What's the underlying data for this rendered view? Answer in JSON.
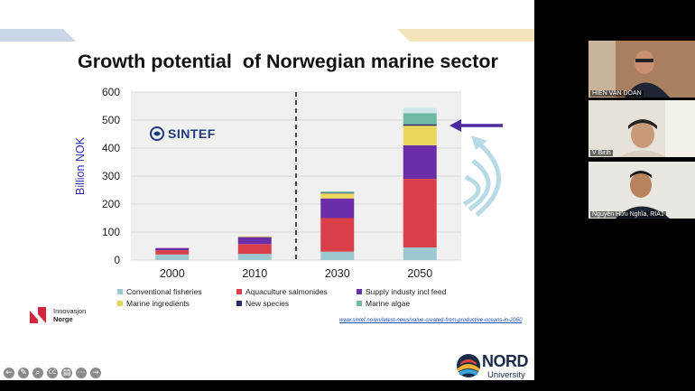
{
  "slide": {
    "title": "Growth potential  of Norwegian marine sector",
    "logo_text": "SINTEF",
    "source_link": "www.sintef.no/en/latest-news/value-created-from-productive-oceans-in-2050",
    "innovasjon": [
      "Innovasjon",
      "Norge"
    ],
    "nord_logo": "NORD",
    "nord_sub": "University"
  },
  "chart_data": {
    "type": "bar",
    "stacked": true,
    "title": "",
    "ylabel": "Billion NOK",
    "xlabel": "",
    "ylim": [
      0,
      600
    ],
    "yticks": [
      0,
      100,
      200,
      300,
      400,
      500,
      600
    ],
    "categories": [
      "2000",
      "2010",
      "2030",
      "2050"
    ],
    "series": [
      {
        "name": "Conventional fisheries",
        "color": "#9cc8d2",
        "values": [
          20,
          22,
          30,
          45
        ]
      },
      {
        "name": "Aquaculture salmonides",
        "color": "#d9404a",
        "values": [
          15,
          35,
          120,
          245
        ]
      },
      {
        "name": "Supply industy incl feed",
        "color": "#6b2ea8",
        "values": [
          8,
          25,
          70,
          120
        ]
      },
      {
        "name": "Marine ingredients",
        "color": "#e9d65a",
        "values": [
          0,
          3,
          18,
          70
        ]
      },
      {
        "name": "New species",
        "color": "#2a2a6a",
        "values": [
          0,
          0,
          2,
          5
        ]
      },
      {
        "name": "Marine algae",
        "color": "#6fb8a6",
        "values": [
          0,
          0,
          5,
          40
        ]
      }
    ],
    "top_segment": {
      "category": "2050",
      "color": "#cfe7ea",
      "value": 18
    },
    "divider_after": "2010",
    "legend_position": "bottom"
  },
  "colors": {
    "accent_arrow": "#4a2aa0",
    "logo_blue": "#1e3a7a",
    "innov_red": "#d3263a"
  },
  "participants": [
    {
      "name": "HIEN VAN DOAN"
    },
    {
      "name": "V Binh"
    },
    {
      "name": "Nguyễn Hữu Nghĩa, RIA1"
    }
  ],
  "controls": [
    "prev-icon",
    "pen-icon",
    "zoom-icon",
    "captions-icon",
    "subtitles-icon",
    "more-icon",
    "next-icon"
  ]
}
